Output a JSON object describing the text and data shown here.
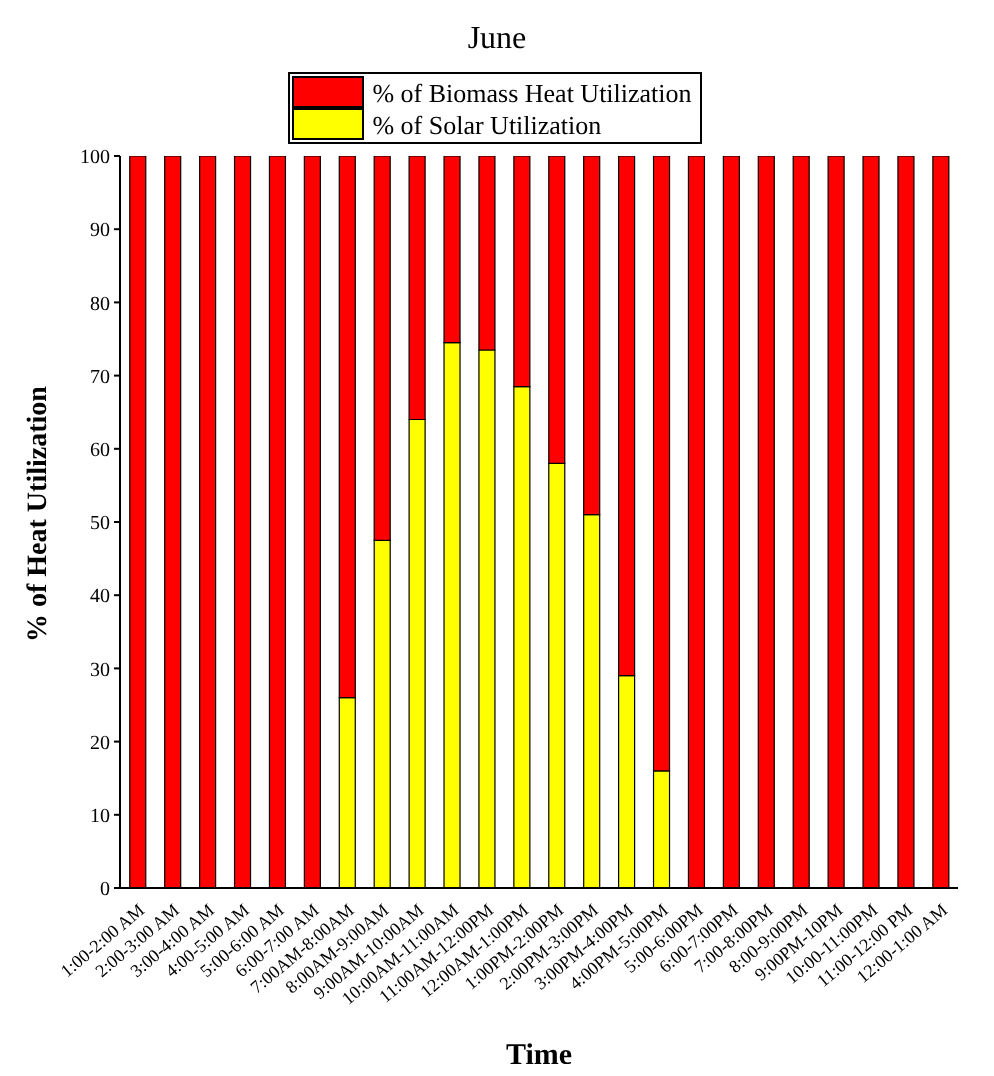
{
  "chart_data": {
    "type": "bar",
    "title": "June",
    "xlabel": "Time",
    "ylabel": "% of Heat Utilization",
    "stacked": true,
    "legend": "top",
    "categories": [
      "1:00-2:00 AM",
      "2:00-3:00 AM",
      "3:00-4:00 AM",
      "4:00-5:00 AM",
      "5:00-6:00 AM",
      "6:00-7:00 AM",
      "7:00AM-8:00AM",
      "8:00AM-9:00AM",
      "9:00AM-10:00AM",
      "10:00AM-11:00AM",
      "11:00AM-12:00PM",
      "12:00AM-1:00PM",
      "1:00PM-2:00PM",
      "2:00PM-3:00PM",
      "3:00PM-4:00PM",
      "4:00PM-5:00PM",
      "5:00-6:00PM",
      "6:00-7:00PM",
      "7:00-8:00PM",
      "8:00-9:00PM",
      "9:00PM-10PM",
      "10:00-11:00PM",
      "11:00-12:00 PM",
      "12:00-1:00 AM"
    ],
    "series": [
      {
        "name": "% of Solar Utilization",
        "color": "#ffff00",
        "values": [
          0,
          0,
          0,
          0,
          0,
          0,
          26,
          47.5,
          64,
          74.5,
          73.5,
          68.5,
          58,
          51,
          29,
          16,
          0,
          0,
          0,
          0,
          0,
          0,
          0,
          0
        ]
      },
      {
        "name": "% of Biomass Heat Utilization",
        "color": "#ff0000",
        "values": [
          100,
          100,
          100,
          100,
          100,
          100,
          74,
          52.5,
          36,
          25.5,
          26.5,
          31.5,
          42,
          49,
          71,
          84,
          100,
          100,
          100,
          100,
          100,
          100,
          100,
          100
        ]
      }
    ],
    "ylim": [
      0,
      100
    ],
    "yticks": [
      0,
      10,
      20,
      30,
      40,
      50,
      60,
      70,
      80,
      90,
      100
    ]
  }
}
